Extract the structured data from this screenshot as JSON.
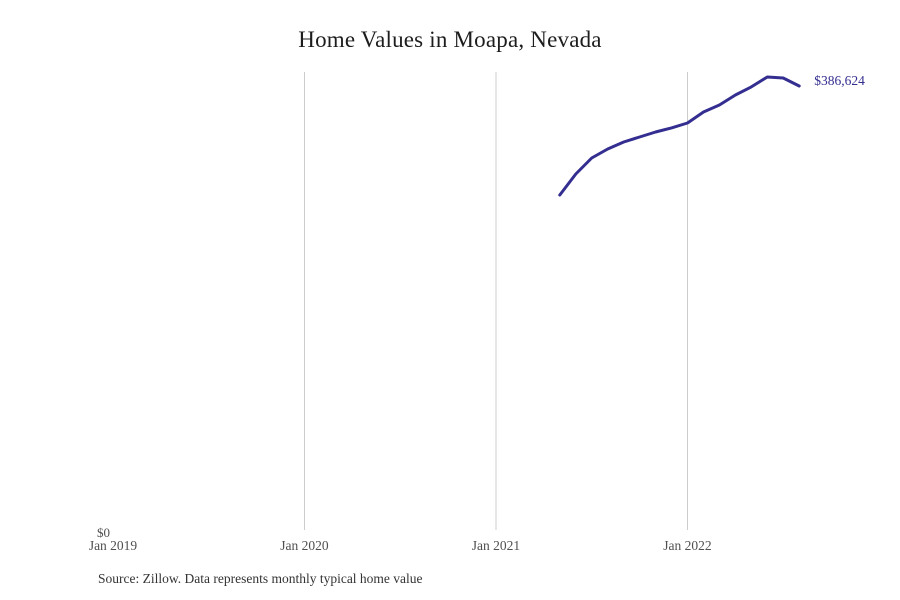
{
  "title": "Home Values in Moapa, Nevada",
  "source_note": "Source: Zillow. Data represents monthly typical home value",
  "colors": {
    "background": "#ffffff",
    "line": "#332e90",
    "end_label": "#332e90",
    "gridline": "#cccccc",
    "tick_label": "#4f4f4f",
    "title": "#1d1d1d",
    "source": "#333333"
  },
  "chart_data": {
    "type": "line",
    "title": "Home Values in Moapa, Nevada",
    "x": [
      "May 2021",
      "Jun 2021",
      "Jul 2021",
      "Aug 2021",
      "Sep 2021",
      "Oct 2021",
      "Nov 2021",
      "Dec 2021",
      "Jan 2022",
      "Feb 2022",
      "Mar 2022",
      "Apr 2022",
      "May 2022",
      "Jun 2022",
      "Jul 2022",
      "Aug 2022"
    ],
    "values": [
      291700,
      310000,
      323900,
      331800,
      337900,
      342200,
      346600,
      350100,
      354400,
      364000,
      370100,
      378800,
      385800,
      394500,
      393600,
      386624
    ],
    "last_value": 386624,
    "last_value_label": "$386,624",
    "xlabel": "",
    "ylabel": "",
    "xlim": [
      "Jan 2019",
      "Sep 2022"
    ],
    "ylim": [
      0,
      399000
    ],
    "x_ticks": [
      "Jan 2019",
      "Jan 2020",
      "Jan 2021",
      "Jan 2022"
    ],
    "x_gridlines": [
      "Jan 2020",
      "Jan 2021",
      "Jan 2022"
    ],
    "y_ticks": [
      "$0"
    ],
    "grid": "vertical-only",
    "legend": "none"
  }
}
